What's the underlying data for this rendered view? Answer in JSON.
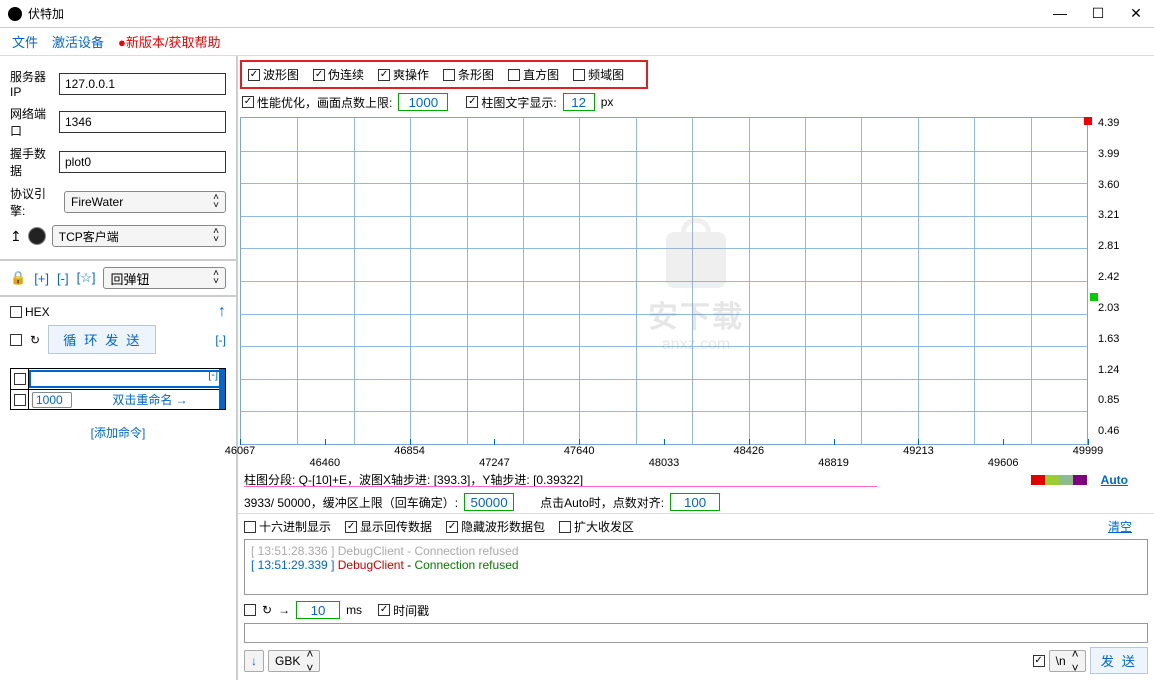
{
  "window": {
    "title": "伏特加",
    "min": "—",
    "max": "☐",
    "close": "✕"
  },
  "menu": {
    "file": "文件",
    "activate": "激活设备",
    "update": "●新版本/获取帮助"
  },
  "sidebar": {
    "server_ip_label": "服务器IP",
    "server_ip": "127.0.0.1",
    "port_label": "网络端口",
    "port": "1346",
    "handshake_label": "握手数据",
    "handshake": "plot0",
    "protocol_label": "协议引擎:",
    "protocol": "FireWater",
    "conn_type": "TCP客户端",
    "lock_icon": "🔒",
    "plus": "[+]",
    "minus": "[-]",
    "star": "[☆]",
    "rebound": "回弹钮",
    "hex": "HEX",
    "loop_icon": "↻",
    "loop_send": "循 环 发 送",
    "loop_minus": "[-]",
    "cmd_value": "1000",
    "rename": "双击重命名 →",
    "hint": "[-]",
    "add_cmd": "[添加命令]"
  },
  "chart_opts": {
    "waveform": "波形图",
    "pseudo": "伪连续",
    "ease": "爽操作",
    "bar": "条形图",
    "hist": "直方图",
    "freq": "频域图"
  },
  "perf_row": {
    "perf_label": "性能优化，画面点数上限:",
    "perf_val": "1000",
    "bartext_label": "柱图文字显示:",
    "bartext_val": "12",
    "px": "px"
  },
  "chart": {
    "ylabels": [
      "4.39",
      "3.99",
      "3.60",
      "3.21",
      "2.81",
      "2.42",
      "2.03",
      "1.63",
      "1.24",
      "0.85",
      "0.46"
    ],
    "xlabels": [
      "46067",
      "46460",
      "46854",
      "47247",
      "47640",
      "48033",
      "48426",
      "48819",
      "49213",
      "49606",
      "49999"
    ],
    "grid_color": "#79a8d6",
    "colorbar": [
      "#e00000",
      "#9acd32",
      "#8fbc8f",
      "#800080"
    ]
  },
  "watermark": {
    "big": "安下载",
    "small": "anxz.com"
  },
  "info1": "柱图分段: Q-[10]+E，波图X轴步进: [393.3]，Y轴步进: [0.39322]",
  "auto_label": "Auto",
  "buffer_row": {
    "p1": "3933/ 50000，缓冲区上限（回车确定）:",
    "v1": "50000",
    "p2": "点击Auto时，点数对齐:",
    "v2": "100"
  },
  "display_opts": {
    "hex_show": "十六进制显示",
    "return_data": "显示回传数据",
    "hide_wave": "隐藏波形数据包",
    "expand": "扩大收发区",
    "clear": "清空"
  },
  "log": {
    "l1": "[ 13:51:28.336 ] DebugClient - Connection refused",
    "l2_ts": "[ 13:51:29.339 ]",
    "l2_dc": "DebugClient",
    "l2_dash": " - ",
    "l2_msg": "Connection refused"
  },
  "sendrow": {
    "loop": "↻",
    "arrow": "→",
    "ms_val": "10",
    "ms": "ms",
    "timestamp": "时间戳",
    "encoding": "GBK",
    "newline": "\\n",
    "send": "发 送",
    "down": "↓"
  }
}
